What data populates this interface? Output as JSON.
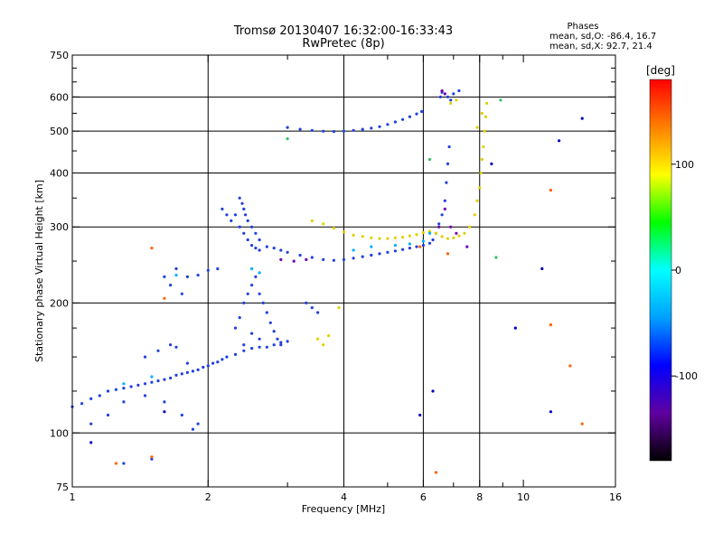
{
  "chart_data": {
    "type": "scatter",
    "title": "Tromsø 20130407 16:32:00-16:33:43",
    "subtitle": "RwPretec (8p)",
    "xlabel": "Frequency [MHz]",
    "ylabel": "Stationary phase Virtual Height [km]",
    "x_scale": "log",
    "y_scale": "log",
    "xlim": [
      1,
      16
    ],
    "ylim": [
      75,
      750
    ],
    "x_ticks": [
      1,
      2,
      4,
      6,
      8,
      10,
      16
    ],
    "x_major_gridlines": [
      2,
      4,
      6,
      8
    ],
    "x_minor_ticks": [
      3,
      5,
      7,
      9
    ],
    "y_ticks": [
      75,
      100,
      200,
      300,
      400,
      500,
      600,
      750
    ],
    "y_major_gridlines": [
      100,
      200,
      300,
      400,
      500,
      600
    ],
    "y_minor_ticks": [
      125,
      150,
      175,
      250,
      350,
      450,
      550,
      650,
      700
    ],
    "grid": true,
    "phases_header": "Phases",
    "stats": [
      "mean, sd,O: -86.4, 16.7",
      "mean, sd,X:  92.7, 21.4"
    ],
    "colorbar": {
      "label": "[deg]",
      "range": [
        -180,
        180
      ],
      "ticks": [
        100,
        0,
        -100
      ],
      "colors": [
        "#000000",
        "#6000a0",
        "#0000ff",
        "#00a0ff",
        "#00ffff",
        "#00ff00",
        "#ffff00",
        "#ff8000",
        "#ff0000"
      ]
    },
    "series": [
      {
        "color": "#2040e0",
        "points": [
          [
            1.0,
            115
          ],
          [
            1.05,
            117
          ],
          [
            1.1,
            120
          ],
          [
            1.15,
            122
          ],
          [
            1.2,
            125
          ],
          [
            1.25,
            126
          ],
          [
            1.3,
            127
          ],
          [
            1.35,
            128
          ],
          [
            1.4,
            129
          ],
          [
            1.45,
            130
          ],
          [
            1.5,
            131
          ],
          [
            1.55,
            132
          ],
          [
            1.6,
            133
          ],
          [
            1.65,
            134
          ],
          [
            1.7,
            136
          ],
          [
            1.75,
            137
          ],
          [
            1.8,
            138
          ],
          [
            1.85,
            139
          ],
          [
            1.9,
            140
          ],
          [
            1.95,
            142
          ],
          [
            2.0,
            143
          ],
          [
            2.05,
            145
          ],
          [
            2.1,
            146
          ],
          [
            2.15,
            148
          ],
          [
            2.2,
            150
          ],
          [
            2.3,
            152
          ],
          [
            2.4,
            155
          ],
          [
            2.5,
            157
          ],
          [
            2.6,
            158
          ],
          [
            2.7,
            158
          ],
          [
            2.8,
            160
          ],
          [
            2.9,
            162
          ],
          [
            3.0,
            163
          ],
          [
            1.1,
            105
          ],
          [
            1.2,
            110
          ],
          [
            1.3,
            118
          ],
          [
            1.45,
            122
          ],
          [
            1.6,
            118
          ],
          [
            1.75,
            110
          ],
          [
            1.85,
            102
          ],
          [
            1.9,
            105
          ],
          [
            1.3,
            85
          ],
          [
            1.5,
            87
          ],
          [
            1.6,
            230
          ],
          [
            1.7,
            240
          ],
          [
            1.8,
            230
          ],
          [
            1.9,
            232
          ],
          [
            2.0,
            238
          ],
          [
            2.1,
            240
          ],
          [
            1.65,
            220
          ],
          [
            1.75,
            210
          ],
          [
            1.45,
            150
          ],
          [
            1.55,
            155
          ],
          [
            1.65,
            160
          ],
          [
            1.7,
            158
          ],
          [
            1.8,
            145
          ],
          [
            2.35,
            350
          ],
          [
            2.38,
            340
          ],
          [
            2.4,
            330
          ],
          [
            2.42,
            320
          ],
          [
            2.45,
            310
          ],
          [
            2.5,
            300
          ],
          [
            2.55,
            290
          ],
          [
            2.6,
            280
          ],
          [
            2.7,
            270
          ],
          [
            2.8,
            268
          ],
          [
            2.9,
            265
          ],
          [
            3.0,
            262
          ],
          [
            3.2,
            258
          ],
          [
            3.4,
            255
          ],
          [
            3.6,
            252
          ],
          [
            3.8,
            251
          ],
          [
            4.0,
            252
          ],
          [
            4.2,
            254
          ],
          [
            4.4,
            256
          ],
          [
            4.6,
            258
          ],
          [
            4.8,
            260
          ],
          [
            5.0,
            262
          ],
          [
            5.2,
            264
          ],
          [
            5.4,
            266
          ],
          [
            5.6,
            268
          ],
          [
            5.8,
            270
          ],
          [
            6.0,
            272
          ],
          [
            6.2,
            275
          ],
          [
            6.3,
            280
          ],
          [
            6.4,
            290
          ],
          [
            6.5,
            305
          ],
          [
            6.6,
            320
          ],
          [
            6.7,
            345
          ],
          [
            6.75,
            380
          ],
          [
            6.8,
            420
          ],
          [
            6.85,
            460
          ],
          [
            2.3,
            320
          ],
          [
            2.35,
            300
          ],
          [
            2.4,
            290
          ],
          [
            2.45,
            280
          ],
          [
            2.5,
            272
          ],
          [
            2.55,
            268
          ],
          [
            2.6,
            265
          ],
          [
            2.3,
            175
          ],
          [
            2.35,
            185
          ],
          [
            2.4,
            200
          ],
          [
            2.45,
            210
          ],
          [
            2.5,
            220
          ],
          [
            2.55,
            230
          ],
          [
            2.6,
            210
          ],
          [
            2.65,
            200
          ],
          [
            2.7,
            190
          ],
          [
            2.75,
            180
          ],
          [
            2.8,
            172
          ],
          [
            2.85,
            165
          ],
          [
            2.9,
            160
          ],
          [
            2.4,
            160
          ],
          [
            2.5,
            170
          ],
          [
            2.6,
            165
          ],
          [
            3.0,
            510
          ],
          [
            3.2,
            505
          ],
          [
            3.4,
            502
          ],
          [
            3.6,
            500
          ],
          [
            3.8,
            499
          ],
          [
            4.0,
            500
          ],
          [
            4.2,
            502
          ],
          [
            4.4,
            505
          ],
          [
            4.6,
            508
          ],
          [
            4.8,
            512
          ],
          [
            5.0,
            518
          ],
          [
            5.2,
            525
          ],
          [
            5.4,
            532
          ],
          [
            5.6,
            540
          ],
          [
            5.8,
            548
          ],
          [
            5.95,
            555
          ],
          [
            3.3,
            200
          ],
          [
            3.4,
            195
          ],
          [
            3.5,
            190
          ],
          [
            6.8,
            600
          ],
          [
            6.9,
            590
          ],
          [
            7.0,
            610
          ],
          [
            7.2,
            620
          ],
          [
            6.6,
            615
          ],
          [
            6.55,
            600
          ],
          [
            2.15,
            330
          ],
          [
            2.2,
            320
          ],
          [
            2.25,
            310
          ]
        ]
      },
      {
        "color": "#e0d000",
        "points": [
          [
            3.4,
            310
          ],
          [
            3.6,
            305
          ],
          [
            3.8,
            298
          ],
          [
            4.0,
            292
          ],
          [
            4.2,
            287
          ],
          [
            4.4,
            285
          ],
          [
            4.6,
            283
          ],
          [
            4.8,
            282
          ],
          [
            5.0,
            282
          ],
          [
            5.2,
            283
          ],
          [
            5.4,
            284
          ],
          [
            5.6,
            286
          ],
          [
            5.8,
            288
          ],
          [
            6.0,
            291
          ],
          [
            6.2,
            293
          ],
          [
            6.4,
            290
          ],
          [
            6.6,
            285
          ],
          [
            6.8,
            282
          ],
          [
            7.0,
            283
          ],
          [
            7.2,
            286
          ],
          [
            7.4,
            290
          ],
          [
            7.6,
            300
          ],
          [
            7.8,
            320
          ],
          [
            7.9,
            345
          ],
          [
            8.0,
            370
          ],
          [
            8.05,
            400
          ],
          [
            8.1,
            430
          ],
          [
            8.15,
            460
          ],
          [
            8.2,
            500
          ],
          [
            8.25,
            540
          ],
          [
            8.3,
            580
          ],
          [
            8.1,
            550
          ],
          [
            7.9,
            510
          ],
          [
            3.5,
            165
          ],
          [
            3.6,
            160
          ],
          [
            3.7,
            168
          ],
          [
            3.9,
            195
          ],
          [
            6.9,
            580
          ],
          [
            7.1,
            590
          ]
        ]
      },
      {
        "color": "#00b0ff",
        "points": [
          [
            2.5,
            240
          ],
          [
            2.6,
            235
          ],
          [
            4.2,
            265
          ],
          [
            4.6,
            270
          ],
          [
            5.2,
            272
          ],
          [
            5.6,
            274
          ],
          [
            6.0,
            278
          ],
          [
            6.2,
            290
          ],
          [
            1.7,
            232
          ],
          [
            1.3,
            130
          ],
          [
            1.5,
            135
          ]
        ]
      },
      {
        "color": "#7000b0",
        "points": [
          [
            2.9,
            252
          ],
          [
            3.1,
            250
          ],
          [
            3.3,
            252
          ],
          [
            6.5,
            300
          ],
          [
            6.7,
            330
          ],
          [
            6.9,
            300
          ],
          [
            7.1,
            290
          ],
          [
            7.5,
            270
          ],
          [
            6.6,
            620
          ],
          [
            6.7,
            610
          ]
        ]
      },
      {
        "color": "#ff6000",
        "points": [
          [
            1.5,
            268
          ],
          [
            1.6,
            205
          ],
          [
            1.25,
            85
          ],
          [
            1.5,
            88
          ],
          [
            6.4,
            81
          ],
          [
            6.8,
            260
          ],
          [
            5.9,
            270
          ],
          [
            11.5,
            365
          ],
          [
            11.5,
            178
          ],
          [
            12.7,
            143
          ],
          [
            13.5,
            105
          ]
        ]
      },
      {
        "color": "#0000c0",
        "points": [
          [
            12.0,
            475
          ],
          [
            13.5,
            535
          ],
          [
            9.6,
            175
          ],
          [
            8.5,
            420
          ],
          [
            6.3,
            125
          ],
          [
            5.9,
            110
          ],
          [
            11.0,
            240
          ],
          [
            11.5,
            112
          ],
          [
            1.1,
            95
          ],
          [
            1.6,
            112
          ]
        ]
      },
      {
        "color": "#30c060",
        "points": [
          [
            8.7,
            255
          ],
          [
            3.0,
            480
          ],
          [
            6.2,
            430
          ],
          [
            8.9,
            590
          ]
        ]
      }
    ]
  }
}
